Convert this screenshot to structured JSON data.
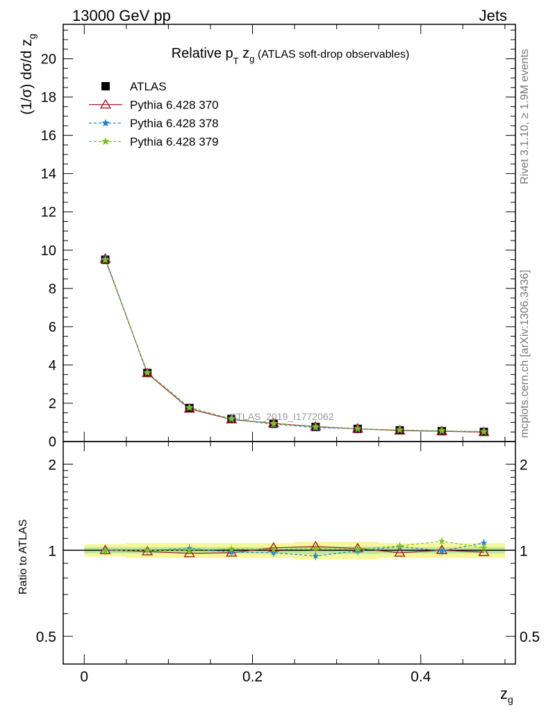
{
  "header": {
    "left": "13000 GeV pp",
    "right": "Jets"
  },
  "side_labels": {
    "rivet": "Rivet 3.1.10, ≥ 1.9M events",
    "mcplots": "mcplots.cern.ch [arXiv:1306.3436]"
  },
  "chart_data": [
    {
      "type": "line",
      "title_main": "Relative p",
      "title_sub_T": "T",
      "title_z": " z",
      "title_sub_g": "g",
      "title_rest": " (ATLAS soft-drop observables)",
      "ylabel": "(1/σ) dσ/d z",
      "ylabel_sub": "g",
      "watermark": "ATLAS_2019_I1772062",
      "xlim": [
        -0.025,
        0.5125
      ],
      "ylim": [
        0,
        21.8
      ],
      "yticks": [
        0,
        2,
        4,
        6,
        8,
        10,
        12,
        14,
        16,
        18,
        20
      ],
      "x": [
        0.025,
        0.075,
        0.125,
        0.175,
        0.225,
        0.275,
        0.325,
        0.375,
        0.425,
        0.475
      ],
      "legend_position": "top-left",
      "series": [
        {
          "name": "ATLAS",
          "color": "#000000",
          "marker": "square",
          "values": [
            9.5,
            3.58,
            1.75,
            1.18,
            0.93,
            0.76,
            0.66,
            0.58,
            0.54,
            0.5
          ]
        },
        {
          "name": "Pythia 6.428 370",
          "color": "#a01c2a",
          "marker": "triangle",
          "values": [
            9.55,
            3.56,
            1.71,
            1.15,
            0.95,
            0.78,
            0.67,
            0.57,
            0.54,
            0.49
          ]
        },
        {
          "name": "Pythia 6.428 378",
          "color": "#1e7fd4",
          "marker": "star",
          "values": [
            9.52,
            3.6,
            1.78,
            1.16,
            0.91,
            0.73,
            0.66,
            0.6,
            0.54,
            0.53
          ]
        },
        {
          "name": "Pythia 6.428 379",
          "color": "#7cc01e",
          "marker": "star",
          "values": [
            9.48,
            3.59,
            1.76,
            1.19,
            0.94,
            0.77,
            0.67,
            0.6,
            0.57,
            0.51
          ]
        }
      ]
    },
    {
      "type": "line",
      "ylabel": "Ratio to ATLAS",
      "xlabel": "z",
      "xlabel_sub": "g",
      "scale": "log",
      "ylim": [
        0.4,
        2.4
      ],
      "yticks": [
        0.5,
        1,
        2
      ],
      "ytick_labels": [
        "0.5",
        "1",
        "2"
      ],
      "xticks": [
        0,
        0.2,
        0.4
      ],
      "xtick_labels": [
        "0",
        "0.2",
        "0.4"
      ],
      "x": [
        0.025,
        0.075,
        0.125,
        0.175,
        0.225,
        0.275,
        0.325,
        0.375,
        0.425,
        0.475
      ],
      "band_outer": [
        0.05,
        0.06,
        0.06,
        0.06,
        0.06,
        0.07,
        0.07,
        0.06,
        0.06,
        0.06
      ],
      "band_inner": [
        0.025,
        0.025,
        0.025,
        0.025,
        0.025,
        0.03,
        0.03,
        0.025,
        0.025,
        0.025
      ],
      "series": [
        {
          "name": "Pythia 6.428 370",
          "color": "#a01c2a",
          "values": [
            1.0,
            0.99,
            0.975,
            0.98,
            1.02,
            1.03,
            1.015,
            0.98,
            1.0,
            0.985
          ]
        },
        {
          "name": "Pythia 6.428 378",
          "color": "#1e7fd4",
          "values": [
            1.0,
            1.0,
            1.015,
            0.985,
            0.98,
            0.955,
            0.995,
            1.03,
            0.995,
            1.06
          ]
        },
        {
          "name": "Pythia 6.428 379",
          "color": "#7cc01e",
          "values": [
            0.995,
            1.0,
            1.0,
            1.01,
            1.005,
            1.015,
            1.01,
            1.035,
            1.075,
            1.02
          ]
        }
      ]
    }
  ]
}
